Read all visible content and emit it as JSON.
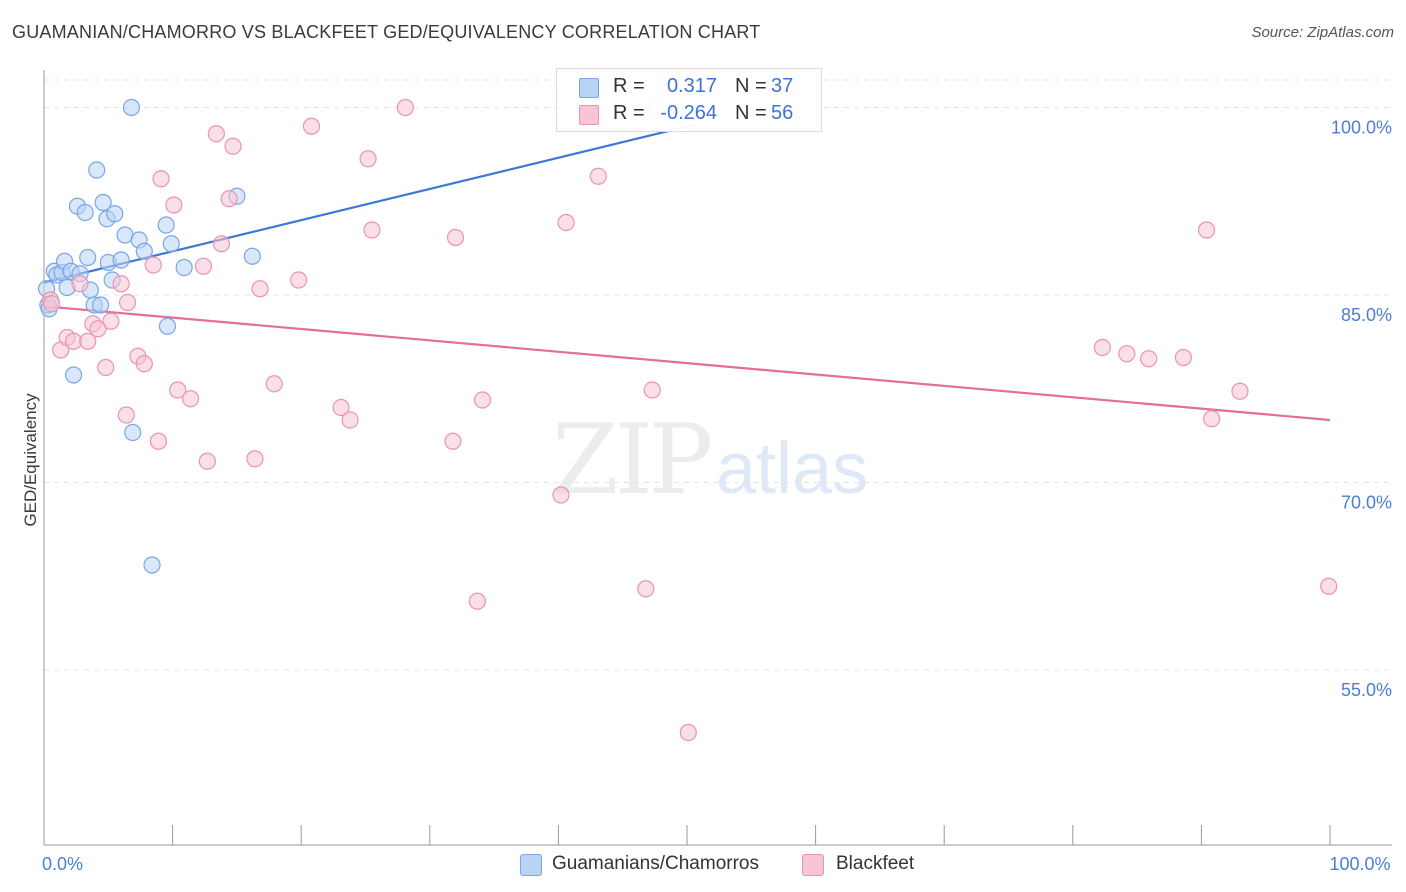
{
  "header": {
    "title": "GUAMANIAN/CHAMORRO VS BLACKFEET GED/EQUIVALENCY CORRELATION CHART",
    "source": "Source: ZipAtlas.com"
  },
  "watermark": {
    "zip": "ZIP",
    "atlas": "atlas"
  },
  "legend_box": {
    "rows": [
      {
        "r_label": "R =",
        "r_value": "0.317",
        "n_label": "N =",
        "n_value": "37"
      },
      {
        "r_label": "R =",
        "r_value": "-0.264",
        "n_label": "N =",
        "n_value": "56"
      }
    ]
  },
  "bottom_legend": {
    "items": [
      {
        "label": "Guamanians/Chamorros"
      },
      {
        "label": "Blackfeet"
      }
    ]
  },
  "colors": {
    "blue_fill": "#b9d3f5",
    "blue_stroke": "#7aa6e6",
    "blue_line": "#3b78d8",
    "pink_fill": "#f8c5d5",
    "pink_stroke": "#ec93b2",
    "pink_line": "#e46e98",
    "accent_text": "#4a7fd4",
    "grid": "#e3e3e3"
  },
  "chart_data": {
    "type": "scatter",
    "title": "GUAMANIAN/CHAMORRO VS BLACKFEET GED/EQUIVALENCY CORRELATION CHART",
    "xlabel": "",
    "ylabel": "GED/Equivalency",
    "xlim": [
      0,
      100
    ],
    "ylim": [
      41,
      103
    ],
    "y_ticks": [
      {
        "value": 100,
        "label": "100.0%"
      },
      {
        "value": 85,
        "label": "85.0%"
      },
      {
        "value": 70,
        "label": "70.0%"
      },
      {
        "value": 55,
        "label": "55.0%"
      }
    ],
    "x_tick_labels": [
      {
        "value": 0,
        "label": "0.0%"
      },
      {
        "value": 100,
        "label": "100.0%"
      }
    ],
    "grid": true,
    "legend": "top-center",
    "series": [
      {
        "name": "Guamanians/Chamorros",
        "color_key": "blue",
        "trend": {
          "x0": 0,
          "y0": 86.0,
          "x1": 50.5,
          "y1": 98.6
        },
        "points": [
          [
            0.2,
            85.5
          ],
          [
            0.3,
            84.2
          ],
          [
            0.4,
            83.9
          ],
          [
            0.8,
            86.9
          ],
          [
            1.0,
            86.6
          ],
          [
            1.4,
            86.8
          ],
          [
            1.6,
            87.7
          ],
          [
            1.8,
            85.6
          ],
          [
            2.1,
            86.9
          ],
          [
            2.3,
            78.6
          ],
          [
            2.6,
            92.1
          ],
          [
            2.8,
            86.7
          ],
          [
            3.2,
            91.6
          ],
          [
            3.4,
            88.0
          ],
          [
            3.6,
            85.4
          ],
          [
            3.9,
            84.2
          ],
          [
            4.1,
            95.0
          ],
          [
            4.4,
            84.2
          ],
          [
            4.6,
            92.4
          ],
          [
            4.9,
            91.1
          ],
          [
            5.0,
            87.6
          ],
          [
            5.3,
            86.2
          ],
          [
            5.5,
            91.5
          ],
          [
            6.0,
            87.8
          ],
          [
            6.3,
            89.8
          ],
          [
            6.8,
            100.0
          ],
          [
            6.9,
            74.0
          ],
          [
            7.4,
            89.4
          ],
          [
            7.8,
            88.5
          ],
          [
            8.4,
            63.4
          ],
          [
            9.5,
            90.6
          ],
          [
            9.6,
            82.5
          ],
          [
            9.9,
            89.1
          ],
          [
            10.9,
            87.2
          ],
          [
            15.0,
            92.9
          ],
          [
            16.2,
            88.1
          ],
          [
            47.7,
            100.0
          ]
        ]
      },
      {
        "name": "Blackfeet",
        "color_key": "pink",
        "trend": {
          "x0": 0,
          "y0": 84.1,
          "x1": 100,
          "y1": 75.0
        },
        "points": [
          [
            0.5,
            84.6
          ],
          [
            0.6,
            84.3
          ],
          [
            1.3,
            80.6
          ],
          [
            1.8,
            81.6
          ],
          [
            2.3,
            81.3
          ],
          [
            2.8,
            85.9
          ],
          [
            3.4,
            81.3
          ],
          [
            3.8,
            82.7
          ],
          [
            4.2,
            82.3
          ],
          [
            4.8,
            79.2
          ],
          [
            5.2,
            82.9
          ],
          [
            6.0,
            85.9
          ],
          [
            6.4,
            75.4
          ],
          [
            6.5,
            84.4
          ],
          [
            7.3,
            80.1
          ],
          [
            7.8,
            79.5
          ],
          [
            8.5,
            87.4
          ],
          [
            8.9,
            73.3
          ],
          [
            9.1,
            94.3
          ],
          [
            10.1,
            92.2
          ],
          [
            10.4,
            77.4
          ],
          [
            11.4,
            76.7
          ],
          [
            12.4,
            87.3
          ],
          [
            12.7,
            71.7
          ],
          [
            13.4,
            97.9
          ],
          [
            13.8,
            89.1
          ],
          [
            14.4,
            92.7
          ],
          [
            14.7,
            96.9
          ],
          [
            16.4,
            71.9
          ],
          [
            16.8,
            85.5
          ],
          [
            17.9,
            77.9
          ],
          [
            19.8,
            86.2
          ],
          [
            20.8,
            98.5
          ],
          [
            23.1,
            76.0
          ],
          [
            23.8,
            75.0
          ],
          [
            25.2,
            95.9
          ],
          [
            25.5,
            90.2
          ],
          [
            28.1,
            100.0
          ],
          [
            31.8,
            73.3
          ],
          [
            32.0,
            89.6
          ],
          [
            33.7,
            60.5
          ],
          [
            34.1,
            76.6
          ],
          [
            40.2,
            69.0
          ],
          [
            40.6,
            90.8
          ],
          [
            43.1,
            94.5
          ],
          [
            46.8,
            61.5
          ],
          [
            47.3,
            77.4
          ],
          [
            50.1,
            50.0
          ],
          [
            82.3,
            80.8
          ],
          [
            84.2,
            80.3
          ],
          [
            85.9,
            79.9
          ],
          [
            88.6,
            80.0
          ],
          [
            90.4,
            90.2
          ],
          [
            90.8,
            75.1
          ],
          [
            93.0,
            77.3
          ],
          [
            99.9,
            61.7
          ]
        ]
      }
    ]
  }
}
